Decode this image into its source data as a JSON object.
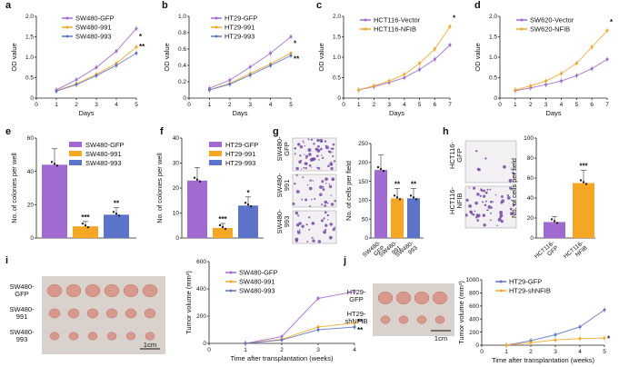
{
  "colors": {
    "purple": "#a06ad0",
    "orange": "#f5a623",
    "blue": "#5b73c9",
    "pink_line": "#c080e0",
    "tissue": "#d8998c",
    "tissue_dark": "#b8736a",
    "crystal_violet": "#6f3fa0",
    "photo_bg": "#f2f0f3"
  },
  "panel_letters": [
    "a",
    "b",
    "c",
    "d",
    "e",
    "f",
    "g",
    "h",
    "i",
    "j"
  ],
  "chart_data": [
    {
      "id": "a",
      "type": "line",
      "xlabel": "Days",
      "ylabel": "OD value",
      "x": [
        0,
        1,
        2,
        3,
        4,
        5
      ],
      "xlim": [
        0,
        5
      ],
      "ylim": [
        0,
        2.0
      ],
      "yticks": [
        0,
        0.5,
        1.0,
        1.5,
        2.0
      ],
      "ytick_labels": [
        "0",
        "0.5",
        "1.0",
        "1.5",
        "2.0"
      ],
      "series": [
        {
          "name": "SW480-GFP",
          "color": "#a06ad0",
          "values": [
            null,
            0.2,
            0.45,
            0.75,
            1.15,
            1.7
          ]
        },
        {
          "name": "SW480-991",
          "color": "#f5a623",
          "values": [
            null,
            0.18,
            0.35,
            0.58,
            0.85,
            1.25
          ]
        },
        {
          "name": "SW480-993",
          "color": "#5b73c9",
          "values": [
            null,
            0.17,
            0.33,
            0.55,
            0.8,
            1.1
          ]
        }
      ],
      "stars": [
        {
          "x": 5,
          "y": 1.45,
          "text": "*"
        },
        {
          "x": 5,
          "y": 1.2,
          "text": "**"
        }
      ]
    },
    {
      "id": "b",
      "type": "line",
      "xlabel": "Days",
      "ylabel": "OD value",
      "x": [
        0,
        1,
        2,
        3,
        4,
        5
      ],
      "xlim": [
        0,
        5
      ],
      "ylim": [
        0,
        1.0
      ],
      "yticks": [
        0,
        0.2,
        0.4,
        0.6,
        0.8,
        1.0
      ],
      "ytick_labels": [
        "0",
        "0.2",
        "0.4",
        "0.6",
        "0.8",
        "1.0"
      ],
      "series": [
        {
          "name": "HT29-GFP",
          "color": "#a06ad0",
          "values": [
            null,
            0.12,
            0.22,
            0.38,
            0.55,
            0.75
          ]
        },
        {
          "name": "HT29-991",
          "color": "#f5a623",
          "values": [
            null,
            0.1,
            0.18,
            0.3,
            0.42,
            0.55
          ]
        },
        {
          "name": "HT29-993",
          "color": "#5b73c9",
          "values": [
            null,
            0.1,
            0.17,
            0.28,
            0.4,
            0.52
          ]
        }
      ],
      "stars": [
        {
          "x": 5,
          "y": 0.64,
          "text": "*"
        },
        {
          "x": 5,
          "y": 0.45,
          "text": "**"
        }
      ]
    },
    {
      "id": "c",
      "type": "line",
      "xlabel": "Days",
      "ylabel": "OD value",
      "x": [
        0,
        1,
        2,
        3,
        4,
        5,
        6,
        7
      ],
      "xlim": [
        0,
        7
      ],
      "ylim": [
        0,
        2.0
      ],
      "yticks": [
        0,
        0.5,
        1.0,
        1.5,
        2.0
      ],
      "ytick_labels": [
        "0",
        "0.5",
        "1.0",
        "1.5",
        "2.0"
      ],
      "series": [
        {
          "name": "HCT116-Vector",
          "color": "#a06ad0",
          "values": [
            null,
            0.2,
            0.28,
            0.38,
            0.5,
            0.7,
            0.95,
            1.3
          ]
        },
        {
          "name": "HCT116-NFIB",
          "color": "#f5a623",
          "values": [
            null,
            0.2,
            0.3,
            0.42,
            0.58,
            0.85,
            1.2,
            1.75
          ]
        }
      ],
      "stars": [
        {
          "x": 7,
          "y": 1.9,
          "text": "*"
        }
      ]
    },
    {
      "id": "d",
      "type": "line",
      "xlabel": "Days",
      "ylabel": "OD value",
      "x": [
        0,
        1,
        2,
        3,
        4,
        5,
        6,
        7
      ],
      "xlim": [
        0,
        7
      ],
      "ylim": [
        0,
        2.0
      ],
      "yticks": [
        0,
        0.5,
        1.0,
        1.5,
        2.0
      ],
      "ytick_labels": [
        "0",
        "0.5",
        "1.0",
        "1.5",
        "2.0"
      ],
      "series": [
        {
          "name": "SW620-Vector",
          "color": "#a06ad0",
          "values": [
            null,
            0.18,
            0.25,
            0.33,
            0.42,
            0.55,
            0.72,
            0.95
          ]
        },
        {
          "name": "SW620-NFIB",
          "color": "#f5a623",
          "values": [
            null,
            0.2,
            0.3,
            0.42,
            0.6,
            0.85,
            1.25,
            1.65
          ]
        }
      ],
      "stars": [
        {
          "x": 7,
          "y": 1.8,
          "text": "*"
        }
      ]
    },
    {
      "id": "e",
      "type": "bar",
      "ylabel": "No. of colonies per well",
      "categories": [
        "SW480-GFP",
        "SW480-991",
        "SW480-993"
      ],
      "values": [
        44,
        7,
        14
      ],
      "ylim": [
        0,
        60
      ],
      "yticks": [
        0,
        20,
        40,
        60
      ],
      "ytick_labels": [
        "0",
        "20",
        "40",
        "60"
      ],
      "colors": [
        "#a06ad0",
        "#f5a623",
        "#5b73c9"
      ],
      "annotations": [
        "",
        "***",
        "**"
      ],
      "legend": true
    },
    {
      "id": "f",
      "type": "bar",
      "ylabel": "No. of colonies per well",
      "categories": [
        "HT29-GFP",
        "HT29-991",
        "HT29-993"
      ],
      "values": [
        23,
        4,
        13
      ],
      "ylim": [
        0,
        40
      ],
      "yticks": [
        0,
        10,
        20,
        30,
        40
      ],
      "ytick_labels": [
        "0",
        "10",
        "20",
        "30",
        "40"
      ],
      "colors": [
        "#a06ad0",
        "#f5a623",
        "#5b73c9"
      ],
      "annotations": [
        "",
        "***",
        "*"
      ],
      "legend": true
    },
    {
      "id": "g",
      "type": "bar",
      "ylabel": "No. of cells per field",
      "categories": [
        "SW480-GFP",
        "SW480-991",
        "SW480-993"
      ],
      "tick_labels": [
        [
          "SW480-",
          "GFP"
        ],
        [
          "SW480-",
          "991"
        ],
        [
          "SW480-",
          "993"
        ]
      ],
      "values": [
        180,
        105,
        105
      ],
      "ylim": [
        0,
        250
      ],
      "yticks": [
        0,
        50,
        100,
        150,
        200,
        250
      ],
      "ytick_labels": [
        "0",
        "50",
        "100",
        "150",
        "200",
        "250"
      ],
      "colors": [
        "#a06ad0",
        "#f5a623",
        "#5b73c9"
      ],
      "annotations": [
        "",
        "**",
        "**"
      ],
      "legend": false,
      "image_row_labels": [
        [
          "SW480-",
          "GFP"
        ],
        [
          "SW480-",
          "991"
        ],
        [
          "SW480-",
          "993"
        ]
      ]
    },
    {
      "id": "h",
      "type": "bar",
      "ylabel": "No. of cells per field",
      "categories": [
        "HCT116-GFP",
        "HCT116-NFIB"
      ],
      "tick_labels": [
        [
          "HCT116-",
          "GFP"
        ],
        [
          "HCT116-",
          "NFIB"
        ]
      ],
      "values": [
        16,
        55
      ],
      "ylim": [
        0,
        100
      ],
      "yticks": [
        0,
        20,
        40,
        60,
        80,
        100
      ],
      "ytick_labels": [
        "0",
        "20",
        "40",
        "60",
        "80",
        "100"
      ],
      "colors": [
        "#a06ad0",
        "#f5a623"
      ],
      "annotations": [
        "",
        "***"
      ],
      "legend": false,
      "image_row_labels": [
        [
          "HCT116-",
          "GFP"
        ],
        [
          "HCT116-",
          "NFIB"
        ]
      ]
    },
    {
      "id": "i",
      "type": "line",
      "xlabel": "Time after transplantation (weeks)",
      "ylabel": "Tumor volume (mm³)",
      "x": [
        0,
        1,
        2,
        3,
        4
      ],
      "xlim": [
        0,
        4
      ],
      "ylim": [
        0,
        600
      ],
      "yticks": [
        0,
        200,
        400,
        600
      ],
      "ytick_labels": [
        "0",
        "200",
        "400",
        "600"
      ],
      "series": [
        {
          "name": "SW480-GFP",
          "color": "#a06ad0",
          "values": [
            null,
            0,
            50,
            330,
            380
          ]
        },
        {
          "name": "SW480-991",
          "color": "#f5a623",
          "values": [
            null,
            0,
            30,
            120,
            150
          ]
        },
        {
          "name": "SW480-993",
          "color": "#5b73c9",
          "values": [
            null,
            0,
            25,
            100,
            120
          ]
        }
      ],
      "stars": [
        {
          "x": 4,
          "y": 140,
          "text": "**"
        },
        {
          "x": 4,
          "y": 80,
          "text": "**"
        }
      ],
      "image_row_labels": [
        [
          "SW480-",
          "GFP"
        ],
        [
          "SW480-",
          "991"
        ],
        [
          "SW480-",
          "993"
        ]
      ],
      "scale_label": "1cm"
    },
    {
      "id": "j",
      "type": "line",
      "xlabel": "Time after transplantation (weeks)",
      "ylabel": "Tumor volume (mm³)",
      "x": [
        0,
        1,
        2,
        3,
        4,
        5
      ],
      "xlim": [
        0,
        5
      ],
      "ylim": [
        0,
        1000
      ],
      "yticks": [
        0,
        200,
        400,
        600,
        800,
        1000
      ],
      "ytick_labels": [
        "0",
        "200",
        "400",
        "600",
        "800",
        "1000"
      ],
      "series": [
        {
          "name": "HT29-GFP",
          "color": "#5b73c9",
          "values": [
            null,
            0,
            70,
            160,
            280,
            540
          ]
        },
        {
          "name": "HT29-shNFIB",
          "color": "#f5a623",
          "values": [
            null,
            0,
            40,
            80,
            100,
            110
          ]
        }
      ],
      "stars": [
        {
          "x": 5,
          "y": 60,
          "text": "*"
        }
      ],
      "image_row_labels": [
        [
          "HT29-",
          "GFP"
        ],
        [
          "HT29-",
          "shNFIB"
        ]
      ],
      "scale_label": "1cm"
    }
  ]
}
